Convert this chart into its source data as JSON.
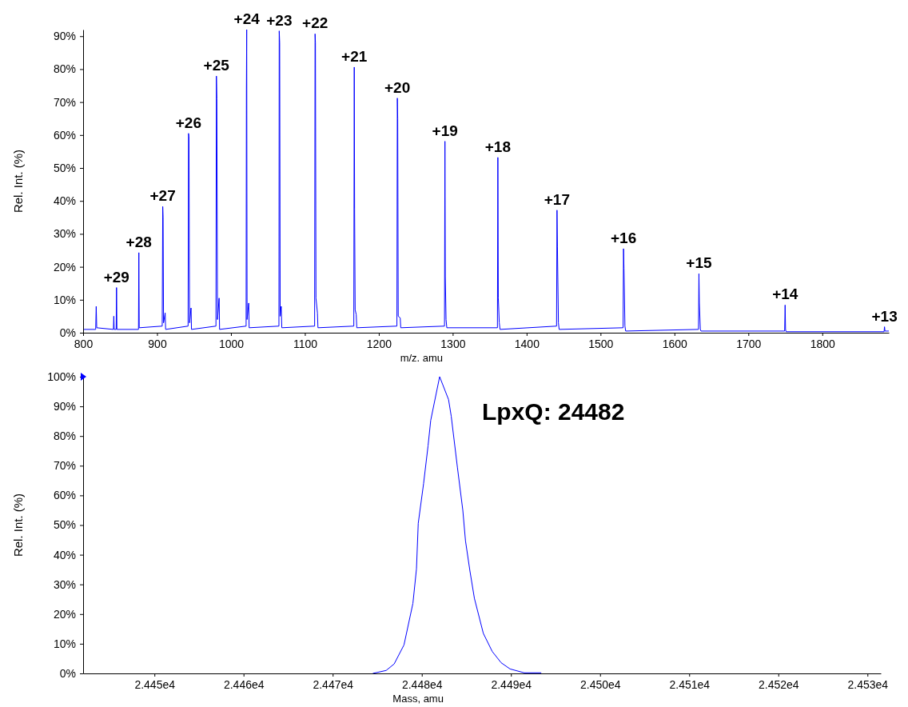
{
  "chart_data": [
    {
      "type": "line",
      "xlabel": "m/z. amu",
      "ylabel": "Rel. Int. (%)",
      "xlim": [
        800,
        1890
      ],
      "xticks": [
        800,
        900,
        1000,
        1100,
        1200,
        1300,
        1400,
        1500,
        1600,
        1700,
        1800
      ],
      "ylim": [
        0,
        92
      ],
      "yticks": [
        {
          "value": 0,
          "label": "0%"
        },
        {
          "value": 10,
          "label": "10%"
        },
        {
          "value": 20,
          "label": "20%"
        },
        {
          "value": 30,
          "label": "30%"
        },
        {
          "value": 40,
          "label": "40%"
        },
        {
          "value": 50,
          "label": "50%"
        },
        {
          "value": 60,
          "label": "60%"
        },
        {
          "value": 70,
          "label": "70%"
        },
        {
          "value": 80,
          "label": "80%"
        },
        {
          "value": 90,
          "label": "90%"
        }
      ],
      "x": [
        800,
        817,
        817.7,
        818.4,
        841,
        841.5,
        842,
        844.7,
        845.2,
        845.7,
        874.9,
        875.4,
        875.9,
        907,
        907.7,
        908.2,
        908.8,
        911,
        911.6,
        942,
        942.6,
        943.2,
        944,
        946,
        946.6,
        979.7,
        980.3,
        980.9,
        981.8,
        984,
        984.6,
        1020.5,
        1020.9,
        1021.3,
        1021.8,
        1024,
        1024.6,
        1064.9,
        1065.3,
        1065.9,
        1066.6,
        1068,
        1068.8,
        1113.2,
        1113.8,
        1114.3,
        1115,
        1117,
        1117.7,
        1166.2,
        1166.8,
        1167.3,
        1168,
        1169.5,
        1170.2,
        1224.5,
        1225.1,
        1225.6,
        1226.3,
        1229,
        1229.7,
        1288.9,
        1289.5,
        1290,
        1291,
        1292,
        1360.5,
        1361.1,
        1361.7,
        1363,
        1364,
        1440.5,
        1441.1,
        1441.7,
        1443,
        1444,
        1530.5,
        1531.1,
        1531.7,
        1533,
        1534,
        1632.5,
        1633.1,
        1633.7,
        1635,
        1636,
        1749.1,
        1749.7,
        1750.3,
        1751,
        1883.6,
        1884.2,
        1884.8,
        1890
      ],
      "series": [
        {
          "color": "#0000ff",
          "values": [
            1,
            1,
            8,
            1.5,
            1,
            5,
            1,
            1,
            13.7,
            1,
            1,
            24.3,
            1.5,
            2,
            38.3,
            35,
            3,
            6,
            1,
            2,
            60.5,
            59.5,
            3,
            7.5,
            1,
            2,
            77.9,
            71,
            4,
            10.5,
            1,
            2,
            74,
            92,
            4,
            9,
            1.5,
            2,
            91.6,
            88,
            5,
            8,
            1.5,
            2,
            90.7,
            88,
            10.5,
            6,
            1.5,
            2,
            80.6,
            37.5,
            7,
            5.5,
            1.5,
            2,
            71.2,
            65,
            5,
            4.5,
            1.5,
            2,
            58.1,
            17,
            4,
            1.5,
            1.5,
            53.2,
            10.5,
            3,
            1,
            2,
            37.2,
            26,
            3,
            1,
            1.5,
            25.5,
            19.5,
            2,
            0.5,
            1,
            17.9,
            9,
            1,
            0.5,
            0.5,
            8.4,
            1,
            0.3,
            0.3,
            1.8,
            0.5,
            0.5
          ]
        }
      ],
      "annotations": [
        {
          "text": "+29",
          "x": 845.2,
          "y": 13.7
        },
        {
          "text": "+28",
          "x": 875.4,
          "y": 24.3
        },
        {
          "text": "+27",
          "x": 907.7,
          "y": 38.3
        },
        {
          "text": "+26",
          "x": 942.6,
          "y": 60.5
        },
        {
          "text": "+25",
          "x": 980.3,
          "y": 77.9
        },
        {
          "text": "+24",
          "x": 1021.3,
          "y": 92
        },
        {
          "text": "+23",
          "x": 1065.3,
          "y": 91.6
        },
        {
          "text": "+22",
          "x": 1113.8,
          "y": 90.7
        },
        {
          "text": "+21",
          "x": 1166.8,
          "y": 80.6
        },
        {
          "text": "+20",
          "x": 1225.1,
          "y": 71.2
        },
        {
          "text": "+19",
          "x": 1289.5,
          "y": 58.1
        },
        {
          "text": "+18",
          "x": 1361.1,
          "y": 53.2
        },
        {
          "text": "+17",
          "x": 1441.1,
          "y": 37.2
        },
        {
          "text": "+16",
          "x": 1531.1,
          "y": 25.5
        },
        {
          "text": "+15",
          "x": 1633.1,
          "y": 17.9
        },
        {
          "text": "+14",
          "x": 1749.7,
          "y": 8.4
        },
        {
          "text": "+13",
          "x": 1884.2,
          "y": 1.8
        }
      ]
    },
    {
      "type": "line",
      "xlabel": "Mass, amu",
      "ylabel": "Rel. Int. (%)",
      "xlim": [
        24442,
        24531.5
      ],
      "xticks": [
        {
          "value": 24450,
          "label": "2.445e4"
        },
        {
          "value": 24460,
          "label": "2.446e4"
        },
        {
          "value": 24470,
          "label": "2.447e4"
        },
        {
          "value": 24480,
          "label": "2.448e4"
        },
        {
          "value": 24490,
          "label": "2.449e4"
        },
        {
          "value": 24500,
          "label": "2.450e4"
        },
        {
          "value": 24510,
          "label": "2.451e4"
        },
        {
          "value": 24520,
          "label": "2.452e4"
        },
        {
          "value": 24530,
          "label": "2.453e4"
        }
      ],
      "ylim": [
        0,
        100
      ],
      "yticks": [
        {
          "value": 0,
          "label": "0%"
        },
        {
          "value": 10,
          "label": "10%"
        },
        {
          "value": 20,
          "label": "20%"
        },
        {
          "value": 30,
          "label": "30%"
        },
        {
          "value": 40,
          "label": "40%"
        },
        {
          "value": 50,
          "label": "50%"
        },
        {
          "value": 60,
          "label": "60%"
        },
        {
          "value": 70,
          "label": "70%"
        },
        {
          "value": 80,
          "label": "80%"
        },
        {
          "value": 90,
          "label": "90%"
        },
        {
          "value": 100,
          "label": "100%"
        }
      ],
      "x": [
        24474.5,
        24476.0,
        24476.9,
        24478.0,
        24479.0,
        24479.4,
        24479.6,
        24480.2,
        24480.7,
        24481.0,
        24482.0,
        24483.0,
        24483.3,
        24484.0,
        24484.6,
        24484.9,
        24485.4,
        24485.9,
        24486.9,
        24487.9,
        24488.9,
        24489.9,
        24491.5,
        24493.4
      ],
      "series": [
        {
          "color": "#0000ff",
          "values": [
            0,
            1,
            3.2,
            9.6,
            23.6,
            35.2,
            50.6,
            64,
            76.7,
            85.3,
            100,
            92.3,
            86.7,
            69.3,
            55,
            44.7,
            34.5,
            25.3,
            13.5,
            7.4,
            3.6,
            1.5,
            0.2,
            0.2
          ]
        }
      ],
      "annotations": [
        "LpxQ: 24482"
      ]
    }
  ]
}
